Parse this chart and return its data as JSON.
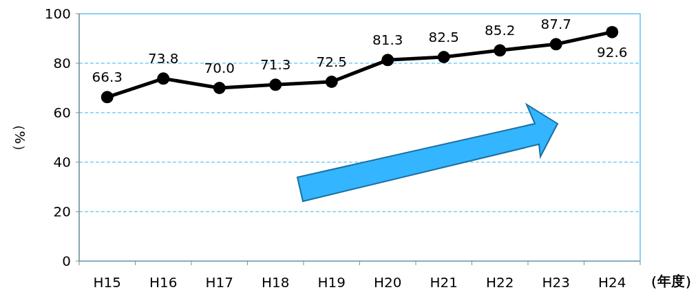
{
  "chart_data": {
    "type": "line",
    "categories": [
      "H15",
      "H16",
      "H17",
      "H18",
      "H19",
      "H20",
      "H21",
      "H22",
      "H23",
      "H24"
    ],
    "series": [
      {
        "color": "#000000",
        "values": [
          66.3,
          73.8,
          70.0,
          71.3,
          72.5,
          81.3,
          82.5,
          85.2,
          87.7,
          92.6
        ]
      }
    ],
    "value_labels": [
      "66.3",
      "73.8",
      "70.0",
      "71.3",
      "72.5",
      "81.3",
      "82.5",
      "85.2",
      "87.7",
      "92.6"
    ],
    "ylim": [
      0,
      100
    ],
    "yticks": [
      0,
      20,
      40,
      60,
      80,
      100
    ],
    "grid": "y",
    "marker": "circle",
    "line_style": "solid",
    "xlabel": "（年度）",
    "ylabel": "（%）"
  }
}
